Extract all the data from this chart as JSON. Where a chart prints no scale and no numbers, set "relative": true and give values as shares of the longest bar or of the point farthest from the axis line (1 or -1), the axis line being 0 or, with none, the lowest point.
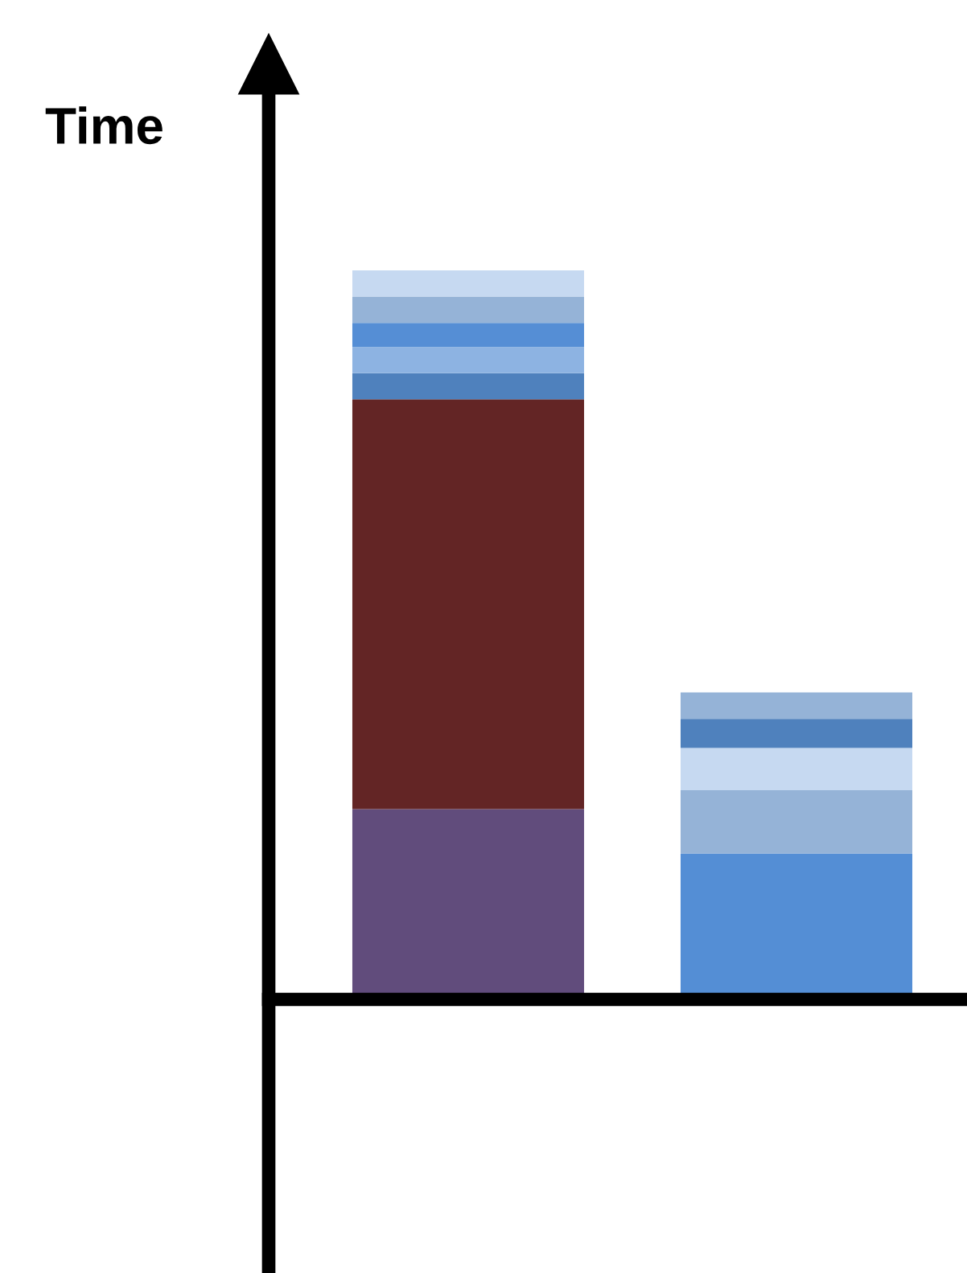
{
  "chart_data": {
    "type": "bar",
    "ylabel": "Time",
    "relative": true,
    "stacked": true,
    "categories": [
      null,
      null
    ],
    "series": [
      {
        "values": [
          0.261,
          0.2
        ],
        "colors": [
          "#614c7c",
          "#548ed5"
        ]
      },
      {
        "values": [
          0.562,
          0.087
        ],
        "colors": [
          "#632525",
          "#95b3d7"
        ]
      },
      {
        "values": [
          0.036,
          0.058
        ],
        "colors": [
          "#4f81bd",
          "#c6d9f1"
        ]
      },
      {
        "values": [
          0.036,
          0.04
        ],
        "colors": [
          "#8db3e2",
          "#4f81bd"
        ]
      },
      {
        "values": [
          0.033,
          0.036
        ],
        "colors": [
          "#558ed5",
          "#95b3d7"
        ]
      },
      {
        "values": [
          0.036,
          null
        ],
        "colors": [
          "#95b3d7",
          null
        ]
      },
      {
        "values": [
          0.036,
          null
        ],
        "colors": [
          "#c6d9f1",
          null
        ]
      }
    ]
  }
}
